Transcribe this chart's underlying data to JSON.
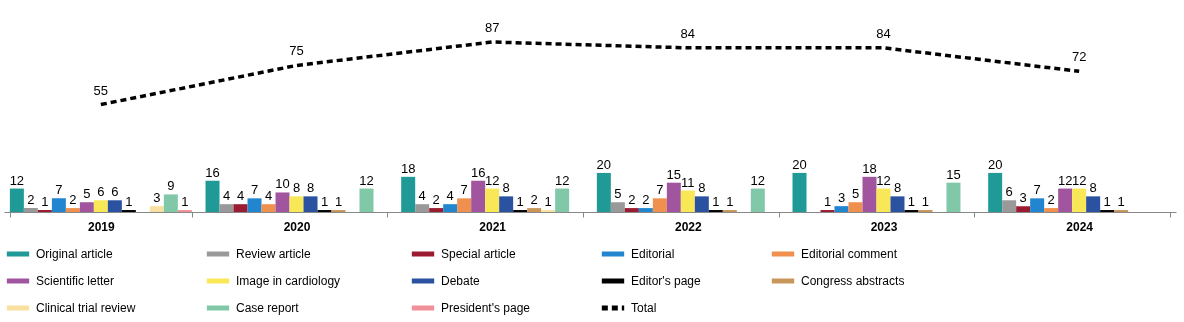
{
  "chart_data": {
    "type": "bar",
    "categories": [
      "2019",
      "2020",
      "2021",
      "2022",
      "2023",
      "2024"
    ],
    "data_labels": true,
    "legend": "bottom",
    "series": [
      {
        "name": "Original article",
        "color": "#1f9a96",
        "values": [
          12,
          16,
          18,
          20,
          20,
          20
        ]
      },
      {
        "name": "Review article",
        "color": "#999999",
        "values": [
          2,
          4,
          4,
          5,
          null,
          6
        ]
      },
      {
        "name": "Special article",
        "color": "#9b1b30",
        "values": [
          1,
          4,
          2,
          2,
          1,
          3
        ]
      },
      {
        "name": "Editorial",
        "color": "#2185d0",
        "values": [
          7,
          7,
          4,
          2,
          3,
          7
        ]
      },
      {
        "name": "Editorial comment",
        "color": "#f0904f",
        "values": [
          2,
          4,
          7,
          7,
          5,
          2
        ]
      },
      {
        "name": "Scientific letter",
        "color": "#a0559e",
        "values": [
          5,
          10,
          16,
          15,
          18,
          12
        ]
      },
      {
        "name": "Image in cardiology",
        "color": "#f8e858",
        "values": [
          6,
          8,
          12,
          11,
          12,
          12
        ]
      },
      {
        "name": "Debate",
        "color": "#2a52a0",
        "values": [
          6,
          8,
          8,
          8,
          8,
          8
        ]
      },
      {
        "name": "Editor's page",
        "color": "#000000",
        "values": [
          1,
          1,
          1,
          1,
          1,
          1
        ]
      },
      {
        "name": "Congress abstracts",
        "color": "#c8965a",
        "values": [
          null,
          1,
          2,
          1,
          1,
          1
        ]
      },
      {
        "name": "Clinical trial review",
        "color": "#f8e0a0",
        "values": [
          3,
          null,
          1,
          null,
          null,
          null
        ]
      },
      {
        "name": "Case report",
        "color": "#80c8a8",
        "values": [
          9,
          12,
          12,
          12,
          15,
          null
        ]
      },
      {
        "name": "President's page",
        "color": "#f09098",
        "values": [
          1,
          null,
          null,
          null,
          null,
          null
        ]
      },
      {
        "name": "Total",
        "color": "#000000",
        "type": "line",
        "line_style": "dashed",
        "marker": "none",
        "values": [
          55,
          75,
          87,
          84,
          84,
          72
        ]
      }
    ]
  }
}
